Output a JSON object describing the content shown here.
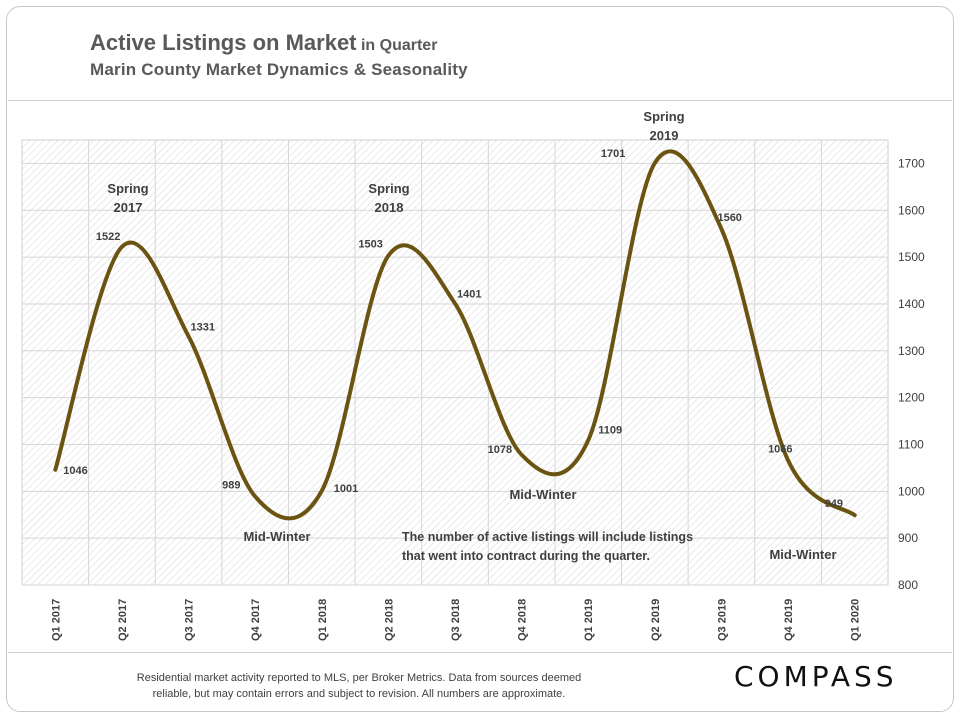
{
  "header": {
    "title": "Active Listings on Market",
    "title_suffix": "in Quarter",
    "subtitle": "Marin County Market Dynamics & Seasonality"
  },
  "footer": {
    "note_line1": "Residential market activity reported to MLS, per Broker Metrics. Data from sources deemed",
    "note_line2": "reliable, but may contain errors and subject to revision. All numbers are approximate.",
    "logo": "COMPASS"
  },
  "chart_data": {
    "type": "line",
    "title": "Active Listings on Market in Quarter",
    "categories": [
      "Q1 2017",
      "Q2 2017",
      "Q3 2017",
      "Q4 2017",
      "Q1 2018",
      "Q2 2018",
      "Q3 2018",
      "Q4 2018",
      "Q1 2019",
      "Q2 2019",
      "Q3 2019",
      "Q4 2019",
      "Q1 2020"
    ],
    "series": [
      {
        "name": "Active Listings",
        "values": [
          1046,
          1522,
          1331,
          989,
          1001,
          1503,
          1401,
          1078,
          1109,
          1701,
          1560,
          1066,
          949
        ],
        "color": "#6b5411"
      }
    ],
    "ylim": [
      800,
      1750
    ],
    "yticks": [
      800,
      900,
      1000,
      1100,
      1200,
      1300,
      1400,
      1500,
      1600,
      1700
    ],
    "y_axis_side": "right",
    "grid": true,
    "annotations": [
      {
        "text": "Spring",
        "text2": "2017"
      },
      {
        "text": "Spring",
        "text2": "2018"
      },
      {
        "text": "Spring",
        "text2": "2019"
      },
      {
        "text": "Mid-Winter"
      },
      {
        "text": "Mid-Winter"
      },
      {
        "text": "Mid-Winter"
      },
      {
        "text": "The number of active listings will include listings",
        "text2": "that went into contract during the quarter."
      }
    ]
  }
}
